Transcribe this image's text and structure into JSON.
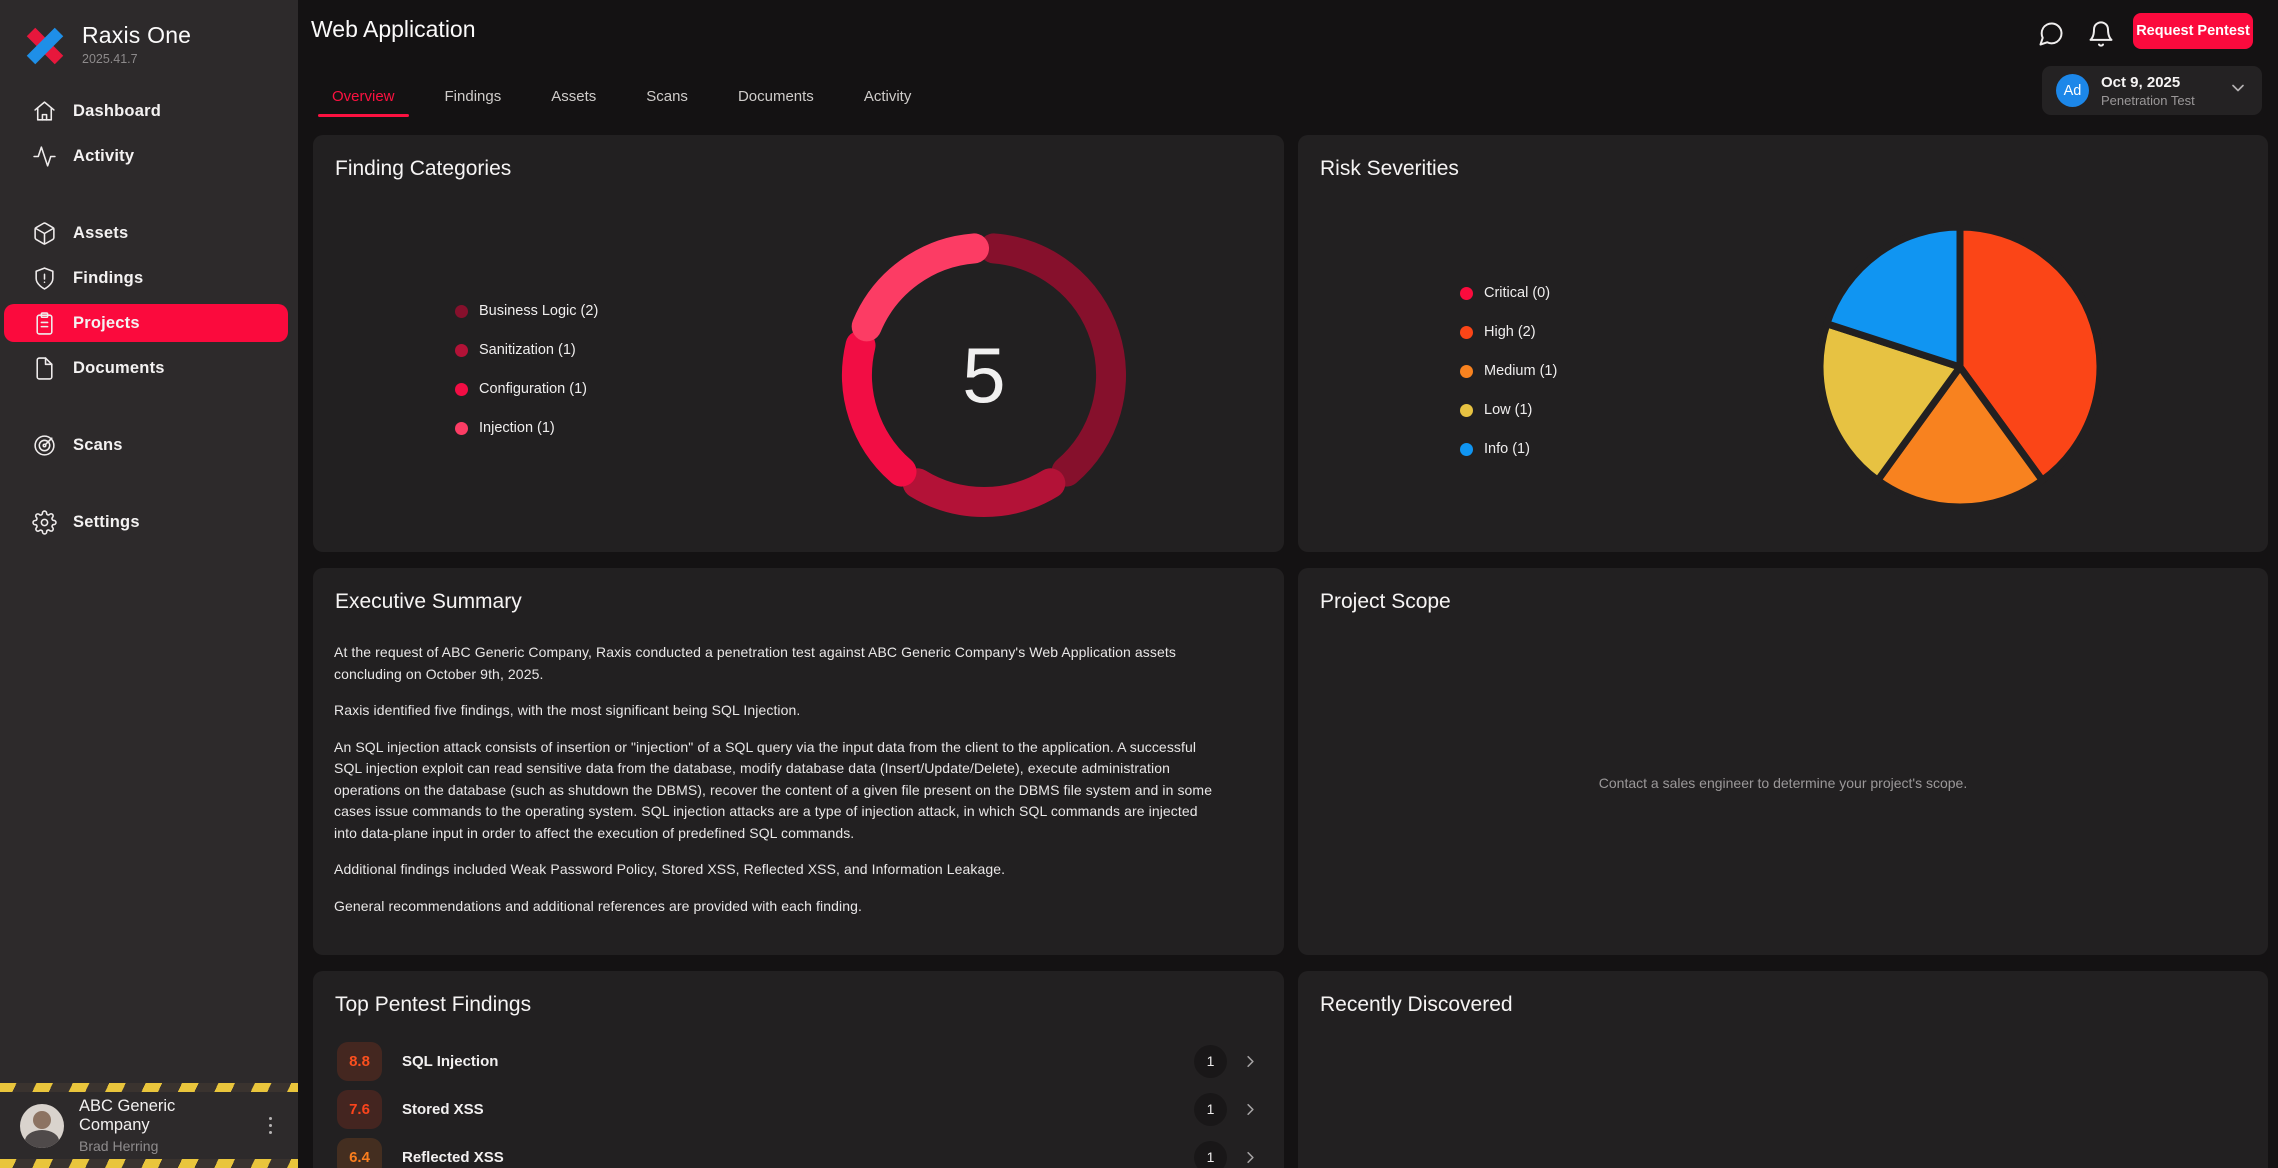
{
  "app": {
    "name": "Raxis One",
    "version": "2025.41.7"
  },
  "accent_color": "#fb0a3d",
  "sidebar": {
    "items": [
      {
        "label": "Dashboard"
      },
      {
        "label": "Activity"
      },
      {
        "label": "Assets"
      },
      {
        "label": "Findings"
      },
      {
        "label": "Projects",
        "active": true
      },
      {
        "label": "Documents"
      },
      {
        "label": "Scans"
      },
      {
        "label": "Settings"
      }
    ],
    "footer": {
      "company": "ABC Generic Company",
      "user": "Brad Herring"
    }
  },
  "header": {
    "title": "Web Application",
    "request_button": "Request Pentest",
    "project_selector": {
      "avatar_initials": "Ad",
      "date": "Oct 9, 2025",
      "type": "Penetration Test"
    }
  },
  "tabs": [
    {
      "label": "Overview",
      "active": true
    },
    {
      "label": "Findings"
    },
    {
      "label": "Assets"
    },
    {
      "label": "Scans"
    },
    {
      "label": "Documents"
    },
    {
      "label": "Activity"
    }
  ],
  "cards": {
    "finding_categories": {
      "title": "Finding Categories"
    },
    "risk_severities": {
      "title": "Risk Severities"
    },
    "executive_summary": {
      "title": "Executive Summary",
      "paragraphs": [
        "At the request of ABC Generic Company, Raxis conducted a penetration test against ABC Generic Company's Web Application assets concluding on October 9th, 2025.",
        "Raxis identified five findings, with the most significant being SQL Injection.",
        "An SQL injection attack consists of insertion or \"injection\" of a SQL query via the input data from the client to the application. A successful SQL injection exploit can read sensitive data from the database, modify database data (Insert/Update/Delete), execute administration operations on the database (such as shutdown the DBMS), recover the content of a given file present on the DBMS file system and in some cases issue commands to the operating system. SQL injection attacks are a type of injection attack, in which SQL commands are injected into data-plane input in order to affect the execution of predefined SQL commands.",
        "Additional findings included Weak Password Policy, Stored XSS, Reflected XSS, and Information Leakage.",
        "General recommendations and additional references are provided with each finding."
      ]
    },
    "project_scope": {
      "title": "Project Scope",
      "empty_text": "Contact a sales engineer to determine your project's scope."
    },
    "top_findings": {
      "title": "Top Pentest Findings",
      "items": [
        {
          "score": "8.8",
          "label": "SQL Injection",
          "count": "1",
          "color": "#fb4f1e",
          "bg": "rgba(251,79,30,0.16)"
        },
        {
          "score": "7.6",
          "label": "Stored XSS",
          "count": "1",
          "color": "#fb441c",
          "bg": "rgba(251,68,28,0.16)"
        },
        {
          "score": "6.4",
          "label": "Reflected XSS",
          "count": "1",
          "color": "#fb7e1e",
          "bg": "rgba(251,126,30,0.16)"
        }
      ]
    },
    "recently_discovered": {
      "title": "Recently Discovered"
    }
  },
  "chart_data": [
    {
      "type": "pie",
      "variant": "donut",
      "title": "Finding Categories",
      "center_label": "5",
      "categories": [
        "Business Logic",
        "Sanitization",
        "Configuration",
        "Injection"
      ],
      "values": [
        2,
        1,
        1,
        1
      ],
      "colors": [
        "#86102c",
        "#b31237",
        "#f20d44",
        "#fc3c64"
      ],
      "legend": [
        "Business Logic (2)",
        "Sanitization (1)",
        "Configuration (1)",
        "Injection (1)"
      ],
      "legend_position": "left",
      "start_angle_deg": 0,
      "direction": "clockwise"
    },
    {
      "type": "pie",
      "variant": "pie",
      "title": "Risk Severities",
      "categories": [
        "Critical",
        "High",
        "Medium",
        "Low",
        "Info"
      ],
      "values": [
        0,
        2,
        1,
        1,
        1
      ],
      "colors": [
        "#fb0b3d",
        "#fb4517",
        "#f8821f",
        "#e7c242",
        "#1095f2"
      ],
      "legend": [
        "Critical (0)",
        "High (2)",
        "Medium (1)",
        "Low (1)",
        "Info (1)"
      ],
      "legend_position": "left",
      "start_angle_deg": 0,
      "direction": "clockwise"
    }
  ]
}
